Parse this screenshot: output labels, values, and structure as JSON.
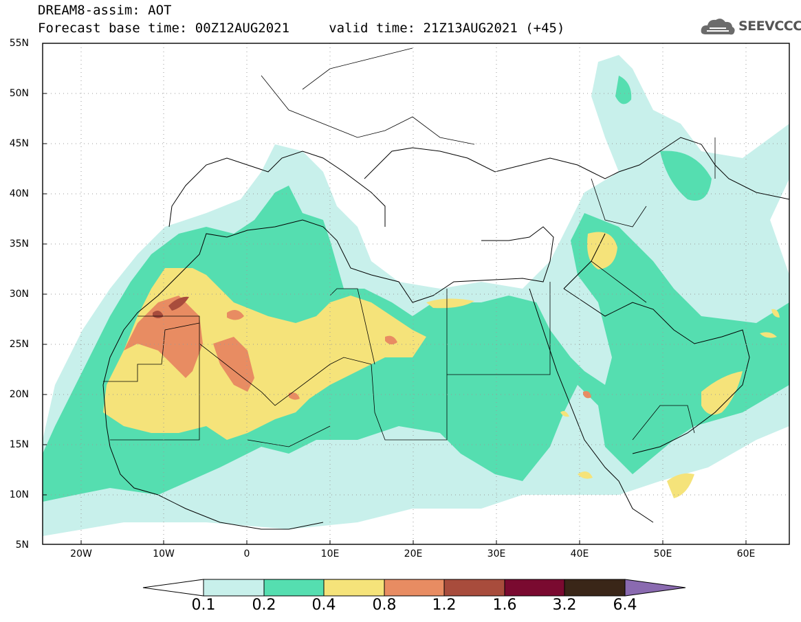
{
  "title": {
    "line1": "DREAM8-assim: AOT",
    "line2": "Forecast base time: 00Z12AUG2021     valid time: 21Z13AUG2021 (+45)"
  },
  "logo": {
    "text": "SEEVCCC",
    "icon": "cloud-icon"
  },
  "map": {
    "lon_range": [
      -25,
      65
    ],
    "lat_range": [
      5,
      55
    ],
    "x_ticks": [
      "20W",
      "10W",
      "0",
      "10E",
      "20E",
      "30E",
      "40E",
      "50E",
      "60E"
    ],
    "y_ticks": [
      "55N",
      "50N",
      "45N",
      "40N",
      "35N",
      "30N",
      "25N",
      "20N",
      "15N",
      "10N",
      "5N"
    ],
    "grid": true
  },
  "legend": {
    "labels": [
      "0.1",
      "0.2",
      "0.4",
      "0.8",
      "1.2",
      "1.6",
      "3.2",
      "6.4"
    ],
    "colors": [
      "#ffffff",
      "#c8f0eb",
      "#55deb0",
      "#f5e37a",
      "#e88c62",
      "#a84c3c",
      "#7a0a30",
      "#3a2618",
      "#8a6ab0"
    ]
  }
}
